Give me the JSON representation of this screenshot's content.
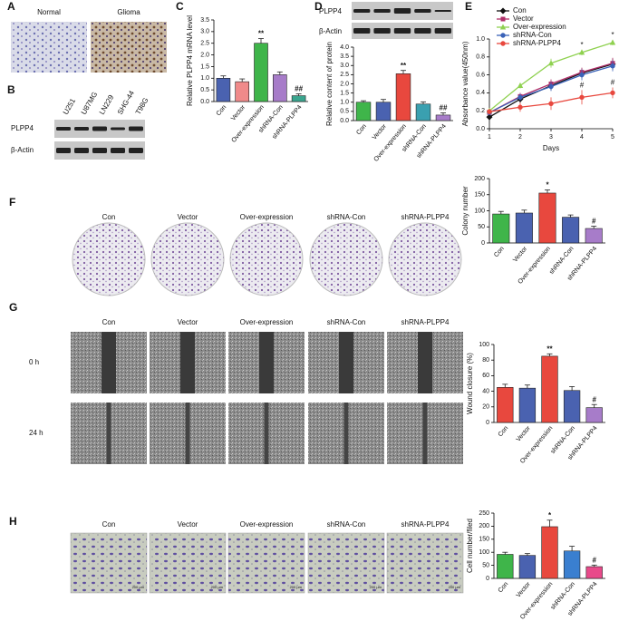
{
  "panels": {
    "A": {
      "letter": "A",
      "labels": [
        "Normal",
        "Glioma"
      ]
    },
    "B": {
      "letter": "B",
      "cell_lines": [
        "U251",
        "U87MG",
        "LN229",
        "SHG-44",
        "T98G"
      ],
      "blots": [
        "PLPP4",
        "β-Actin"
      ]
    },
    "C": {
      "letter": "C"
    },
    "D": {
      "letter": "D",
      "blots": [
        "PLPP4",
        "β-Actin"
      ]
    },
    "E": {
      "letter": "E"
    },
    "F": {
      "letter": "F",
      "labels": [
        "Con",
        "Vector",
        "Over-expression",
        "shRNA-Con",
        "shRNA-PLPP4"
      ]
    },
    "G": {
      "letter": "G",
      "labels": [
        "Con",
        "Vector",
        "Over-expression",
        "shRNA-Con",
        "shRNA-PLPP4"
      ],
      "rows": [
        "0 h",
        "24 h"
      ]
    },
    "H": {
      "letter": "H",
      "labels": [
        "Con",
        "Vector",
        "Over-expression",
        "shRNA-Con",
        "shRNA-PLPP4"
      ],
      "scale_bar": "200 μm"
    }
  },
  "chart_data": [
    {
      "type": "bar",
      "y_label": "Relative PLPP4 mRNA level",
      "categories": [
        "Con",
        "Vector",
        "Over-expression",
        "shRNA-Con",
        "shRNA-PLPP4"
      ],
      "values": [
        1.0,
        0.85,
        2.5,
        1.15,
        0.25
      ],
      "errors": [
        0.1,
        0.12,
        0.2,
        0.12,
        0.08
      ],
      "colors": [
        "#4a62b0",
        "#f08a8a",
        "#3fb54a",
        "#a77cc9",
        "#3aa58e"
      ],
      "annotations": [
        null,
        null,
        "**",
        null,
        "##"
      ],
      "ylim": [
        0,
        3.5
      ],
      "yticks": [
        {
          "value": 0,
          "label": "0.0"
        },
        {
          "value": 0.5,
          "label": "0.5"
        },
        {
          "value": 1,
          "label": "1.0"
        },
        {
          "value": 1.5,
          "label": "1.5"
        },
        {
          "value": 2,
          "label": "2.0"
        },
        {
          "value": 2.5,
          "label": "2.5"
        },
        {
          "value": 3,
          "label": "3.0"
        },
        {
          "value": 3.5,
          "label": "3.5"
        }
      ]
    },
    {
      "type": "bar",
      "y_label": "Relative content of protein",
      "categories": [
        "Con",
        "Vector",
        "Over-expression",
        "shRNA-Con",
        "shRNA-PLPP4"
      ],
      "values": [
        1.0,
        1.0,
        2.55,
        0.9,
        0.3
      ],
      "errors": [
        0.08,
        0.15,
        0.18,
        0.12,
        0.12
      ],
      "colors": [
        "#3fb54a",
        "#4a62b0",
        "#e8483e",
        "#3aa0b0",
        "#a77cc9"
      ],
      "annotations": [
        null,
        null,
        "**",
        null,
        "##"
      ],
      "ylim": [
        0,
        4
      ],
      "yticks": [
        {
          "value": 0,
          "label": "0.0"
        },
        {
          "value": 0.5,
          "label": "0.5"
        },
        {
          "value": 1,
          "label": "1.0"
        },
        {
          "value": 1.5,
          "label": "1.5"
        },
        {
          "value": 2,
          "label": "2.0"
        },
        {
          "value": 2.5,
          "label": "2.5"
        },
        {
          "value": 3,
          "label": "3.0"
        },
        {
          "value": 3.5,
          "label": "3.5"
        },
        {
          "value": 4,
          "label": "4.0"
        }
      ]
    },
    {
      "type": "line",
      "x_label": "Days",
      "y_label": "Absorbance value(450nm)",
      "x": [
        1,
        2,
        3,
        4,
        5
      ],
      "xlim": [
        1,
        5
      ],
      "xticks": [
        1,
        2,
        3,
        4,
        5
      ],
      "ylim": [
        0,
        1
      ],
      "yticks": [
        {
          "value": 0,
          "label": "0.0"
        },
        {
          "value": 0.2,
          "label": "0.2"
        },
        {
          "value": 0.4,
          "label": "0.4"
        },
        {
          "value": 0.6,
          "label": "0.6"
        },
        {
          "value": 0.8,
          "label": "0.8"
        },
        {
          "value": 1,
          "label": "1.0"
        }
      ],
      "series": [
        {
          "name": "Con",
          "color": "#111111",
          "marker": "diamond",
          "values": [
            0.13,
            0.33,
            0.48,
            0.62,
            0.72
          ],
          "errors": [
            0.03,
            0.04,
            0.05,
            0.05,
            0.06
          ],
          "point_labels": [
            null,
            null,
            null,
            null,
            null
          ]
        },
        {
          "name": "Vector",
          "color": "#b0306a",
          "marker": "square",
          "values": [
            0.18,
            0.36,
            0.5,
            0.63,
            0.73
          ],
          "errors": [
            0.03,
            0.04,
            0.05,
            0.05,
            0.06
          ],
          "point_labels": [
            null,
            null,
            null,
            null,
            null
          ]
        },
        {
          "name": "Over-expression",
          "color": "#8fd150",
          "marker": "triangle",
          "values": [
            0.2,
            0.48,
            0.73,
            0.85,
            0.96
          ],
          "errors": [
            0.03,
            0.03,
            0.05,
            0.03,
            0.03
          ],
          "point_labels": [
            null,
            null,
            null,
            "*",
            "*"
          ]
        },
        {
          "name": "shRNA-Con",
          "color": "#3a62b8",
          "marker": "circle",
          "values": [
            0.18,
            0.35,
            0.47,
            0.6,
            0.7
          ],
          "errors": [
            0.03,
            0.04,
            0.05,
            0.06,
            0.06
          ],
          "point_labels": [
            null,
            null,
            null,
            null,
            null
          ]
        },
        {
          "name": "shRNA-PLPP4",
          "color": "#e8483e",
          "marker": "circle",
          "values": [
            0.19,
            0.24,
            0.28,
            0.35,
            0.4
          ],
          "errors": [
            0.03,
            0.05,
            0.07,
            0.08,
            0.06
          ],
          "point_labels": [
            null,
            null,
            null,
            "#",
            "#"
          ]
        }
      ]
    },
    {
      "type": "bar",
      "y_label": "Colony number",
      "categories": [
        "Con",
        "Vector",
        "Over-expression",
        "shRNA-Con",
        "shRNA-PLPP4"
      ],
      "values": [
        90,
        93,
        155,
        80,
        45
      ],
      "errors": [
        8,
        9,
        10,
        7,
        7
      ],
      "colors": [
        "#3fb54a",
        "#4a62b0",
        "#e8483e",
        "#4a62b0",
        "#a77cc9"
      ],
      "annotations": [
        null,
        null,
        "*",
        null,
        "#"
      ],
      "ylim": [
        0,
        200
      ],
      "yticks": [
        0,
        50,
        100,
        150,
        200
      ]
    },
    {
      "type": "bar",
      "y_label": "Wound closure (%)",
      "categories": [
        "Con",
        "Vector",
        "Over-expression",
        "shRNA-Con",
        "shRNA-PLPP4"
      ],
      "values": [
        45,
        44,
        85,
        41,
        19
      ],
      "errors": [
        4,
        4,
        3,
        5,
        4
      ],
      "colors": [
        "#e8483e",
        "#4a62b0",
        "#e8483e",
        "#4a62b0",
        "#a77cc9"
      ],
      "annotations": [
        null,
        null,
        "**",
        null,
        "#"
      ],
      "ylim": [
        0,
        100
      ],
      "yticks": [
        0,
        20,
        40,
        60,
        80,
        100
      ]
    },
    {
      "type": "bar",
      "y_label": "Cell number/filed",
      "categories": [
        "Con",
        "Vector",
        "Over-expression",
        "shRNA-Con",
        "shRNA-PLPP4"
      ],
      "values": [
        92,
        88,
        198,
        105,
        45
      ],
      "errors": [
        8,
        7,
        25,
        18,
        6
      ],
      "colors": [
        "#3fb54a",
        "#4a62b0",
        "#e8483e",
        "#3a7fd0",
        "#e84a8a"
      ],
      "annotations": [
        null,
        null,
        "*",
        null,
        "#"
      ],
      "ylim": [
        0,
        250
      ],
      "yticks": [
        0,
        50,
        100,
        150,
        200,
        250
      ]
    }
  ]
}
